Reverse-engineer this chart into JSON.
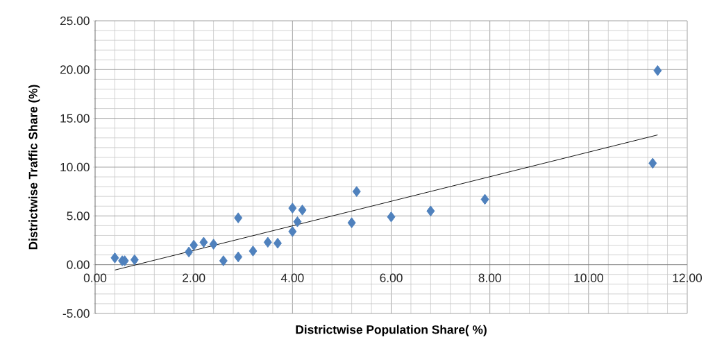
{
  "chart_data": {
    "type": "scatter",
    "xlabel": "Districtwise Population Share( %)",
    "ylabel": "Districtwise Traffic Share (%)",
    "xlim": [
      0,
      12
    ],
    "ylim": [
      -5,
      25
    ],
    "xticks": [
      {
        "value": 0,
        "label": "0.00"
      },
      {
        "value": 2,
        "label": "2.00"
      },
      {
        "value": 4,
        "label": "4.00"
      },
      {
        "value": 6,
        "label": "6.00"
      },
      {
        "value": 8,
        "label": "8.00"
      },
      {
        "value": 10,
        "label": "10.00"
      },
      {
        "value": 12,
        "label": "12.00"
      }
    ],
    "yticks": [
      {
        "value": -5,
        "label": "-5.00"
      },
      {
        "value": 0,
        "label": "0.00"
      },
      {
        "value": 5,
        "label": "5.00"
      },
      {
        "value": 10,
        "label": "10.00"
      },
      {
        "value": 15,
        "label": "15.00"
      },
      {
        "value": 20,
        "label": "20.00"
      },
      {
        "value": 25,
        "label": "25.00"
      }
    ],
    "grid": true,
    "marker": "diamond",
    "series": [
      {
        "color": "#4f81bd",
        "x": [
          0.4,
          0.55,
          0.6,
          0.8,
          1.9,
          2.0,
          2.2,
          2.4,
          2.6,
          2.9,
          2.9,
          3.2,
          3.5,
          3.7,
          4.0,
          4.0,
          4.1,
          4.2,
          5.2,
          5.3,
          6.0,
          6.8,
          7.9,
          11.3,
          11.4
        ],
        "values": [
          0.7,
          0.4,
          0.4,
          0.5,
          1.3,
          2.0,
          2.3,
          2.1,
          0.4,
          4.8,
          0.8,
          1.4,
          2.3,
          2.2,
          5.8,
          3.4,
          4.4,
          5.6,
          4.3,
          7.5,
          4.9,
          5.5,
          6.7,
          10.4,
          19.9
        ]
      },
      {
        "type": "line",
        "color": "#000000",
        "marker": "none",
        "x": [
          0.4,
          11.4
        ],
        "values": [
          -0.55,
          13.3
        ]
      }
    ]
  }
}
